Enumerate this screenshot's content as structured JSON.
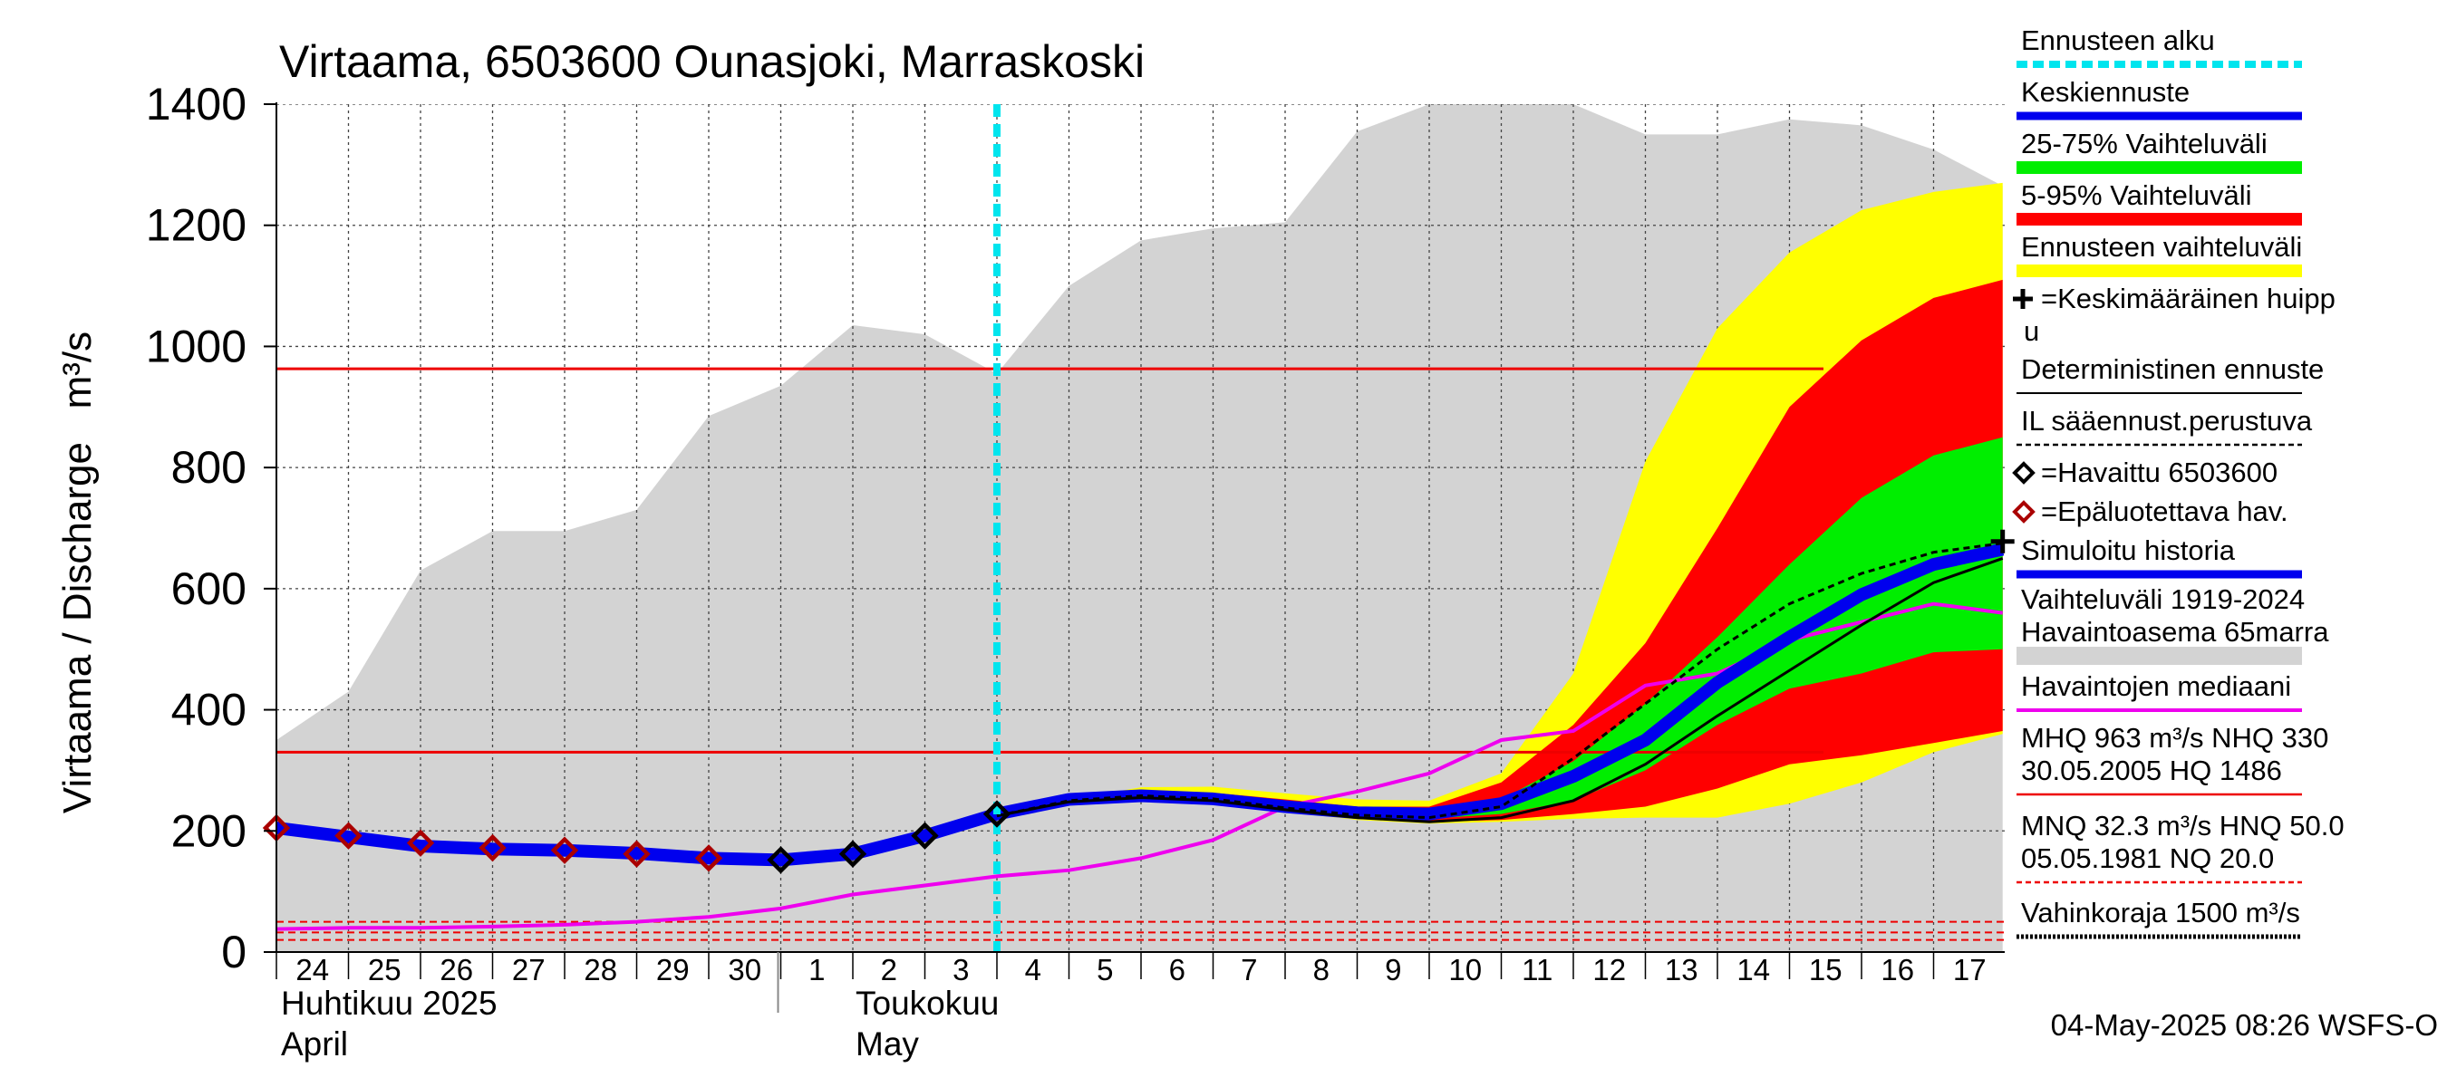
{
  "chart_data": {
    "type": "area",
    "title": "Virtaama, 6503600 Ounasjoki, Marraskoski",
    "ylabel": "Virtaama / Discharge   m³/s",
    "ylim": [
      0,
      1400
    ],
    "yticks": [
      0,
      200,
      400,
      600,
      800,
      1000,
      1200,
      1400
    ],
    "grid": true,
    "legend_position": "right",
    "x_start": "2025-04-24",
    "x_end": "2025-05-17",
    "day_labels": [
      "24",
      "25",
      "26",
      "27",
      "28",
      "29",
      "30",
      "1",
      "2",
      "3",
      "4",
      "5",
      "6",
      "7",
      "8",
      "9",
      "10",
      "11",
      "12",
      "13",
      "14",
      "15",
      "16",
      "17"
    ],
    "month_labels": [
      {
        "date": "2025-04-24",
        "fi": "Huhtikuu  2025",
        "en": "April"
      },
      {
        "date": "2025-05-02",
        "fi": "Toukokuu",
        "en": "May"
      }
    ],
    "forecast_start": "2025-05-04",
    "timestamp": "04-May-2025 08:26 WSFS-O",
    "colors": {
      "history_range": "#d3d3d3",
      "forecast_range": "#ffff00",
      "p5_95": "#ff0000",
      "p25_75": "#00ee00",
      "mean_forecast": "#0000ee",
      "median": "#ee00ee",
      "forecast_start": "#00e5ee",
      "hq_lines": "#ee0000",
      "observed": "#000000",
      "unreliable": "#aa0000"
    },
    "reference_lines": [
      {
        "name": "MHQ",
        "value": 963,
        "style": "solid"
      },
      {
        "name": "NHQ",
        "value": 330,
        "style": "solid"
      },
      {
        "name": "HNQ",
        "value": 50,
        "style": "dashed"
      },
      {
        "name": "MNQ",
        "value": 32.3,
        "style": "dashed"
      },
      {
        "name": "NQ",
        "value": 20,
        "style": "dashed"
      }
    ],
    "series": {
      "history_range": {
        "name": "Vaihteluväli 1919-2024 Havaintoasema 65marra",
        "x": [
          "2025-04-24",
          "2025-04-25",
          "2025-04-26",
          "2025-04-27",
          "2025-04-28",
          "2025-04-29",
          "2025-04-30",
          "2025-05-01",
          "2025-05-02",
          "2025-05-03",
          "2025-05-04",
          "2025-05-05",
          "2025-05-06",
          "2025-05-07",
          "2025-05-08",
          "2025-05-09",
          "2025-05-10",
          "2025-05-11",
          "2025-05-12",
          "2025-05-13",
          "2025-05-14",
          "2025-05-15",
          "2025-05-16",
          "2025-05-17",
          "2025-05-17T23:00"
        ],
        "upper": [
          350,
          430,
          630,
          695,
          695,
          730,
          885,
          935,
          1035,
          1020,
          955,
          1100,
          1175,
          1195,
          1205,
          1355,
          1400,
          1400,
          1400,
          1350,
          1350,
          1375,
          1365,
          1325,
          1265
        ],
        "lower": [
          0,
          0,
          0,
          0,
          0,
          0,
          0,
          0,
          0,
          0,
          0,
          0,
          0,
          0,
          0,
          0,
          0,
          0,
          0,
          0,
          0,
          0,
          0,
          0,
          0
        ]
      },
      "forecast_range": {
        "name": "Ennusteen vaihteluväli",
        "x": [
          "2025-05-04",
          "2025-05-05",
          "2025-05-06",
          "2025-05-07",
          "2025-05-08",
          "2025-05-09",
          "2025-05-10",
          "2025-05-11",
          "2025-05-12",
          "2025-05-13",
          "2025-05-14",
          "2025-05-15",
          "2025-05-16",
          "2025-05-17",
          "2025-05-17T23:00"
        ],
        "upper": [
          225,
          252,
          272,
          273,
          262,
          252,
          250,
          295,
          460,
          810,
          1030,
          1155,
          1225,
          1255,
          1270
        ],
        "lower": [
          225,
          248,
          252,
          248,
          232,
          218,
          212,
          215,
          220,
          222,
          222,
          245,
          280,
          330,
          360
        ]
      },
      "p5_95": {
        "name": "5-95% Vaihteluväli",
        "x": [
          "2025-05-04",
          "2025-05-05",
          "2025-05-06",
          "2025-05-07",
          "2025-05-08",
          "2025-05-09",
          "2025-05-10",
          "2025-05-11",
          "2025-05-12",
          "2025-05-13",
          "2025-05-14",
          "2025-05-15",
          "2025-05-16",
          "2025-05-17",
          "2025-05-17T23:00"
        ],
        "upper": [
          225,
          250,
          262,
          263,
          252,
          240,
          240,
          280,
          375,
          510,
          700,
          900,
          1010,
          1080,
          1110
        ],
        "lower": [
          225,
          248,
          253,
          248,
          233,
          220,
          215,
          218,
          228,
          240,
          270,
          310,
          325,
          345,
          365
        ]
      },
      "p25_75": {
        "name": "25-75% Vaihteluväli",
        "x": [
          "2025-05-04",
          "2025-05-05",
          "2025-05-06",
          "2025-05-07",
          "2025-05-08",
          "2025-05-09",
          "2025-05-10",
          "2025-05-11",
          "2025-05-12",
          "2025-05-13",
          "2025-05-14",
          "2025-05-15",
          "2025-05-16",
          "2025-05-17",
          "2025-05-17T23:00"
        ],
        "upper": [
          225,
          249,
          258,
          256,
          245,
          233,
          232,
          252,
          315,
          410,
          520,
          640,
          750,
          820,
          850
        ],
        "lower": [
          225,
          248,
          254,
          250,
          236,
          224,
          220,
          228,
          250,
          300,
          375,
          435,
          460,
          495,
          500
        ]
      },
      "mean_forecast": {
        "name": "Keskiennuste",
        "x": [
          "2025-04-24",
          "2025-04-25",
          "2025-04-26",
          "2025-04-27",
          "2025-04-28",
          "2025-04-29",
          "2025-04-30",
          "2025-05-01",
          "2025-05-02",
          "2025-05-03",
          "2025-05-04",
          "2025-05-05",
          "2025-05-06",
          "2025-05-07",
          "2025-05-08",
          "2025-05-09",
          "2025-05-10",
          "2025-05-11",
          "2025-05-12",
          "2025-05-13",
          "2025-05-14",
          "2025-05-15",
          "2025-05-16",
          "2025-05-17",
          "2025-05-17T23:00"
        ],
        "values": [
          205,
          190,
          175,
          170,
          168,
          163,
          155,
          152,
          162,
          192,
          228,
          252,
          258,
          253,
          240,
          230,
          228,
          245,
          290,
          350,
          445,
          520,
          590,
          640,
          665
        ]
      },
      "deterministic": {
        "name": "Deterministinen ennuste",
        "x": [
          "2025-05-04",
          "2025-05-05",
          "2025-05-06",
          "2025-05-07",
          "2025-05-08",
          "2025-05-09",
          "2025-05-10",
          "2025-05-11",
          "2025-05-12",
          "2025-05-13",
          "2025-05-14",
          "2025-05-15",
          "2025-05-16",
          "2025-05-17",
          "2025-05-17T23:00"
        ],
        "values": [
          225,
          248,
          255,
          250,
          235,
          222,
          215,
          222,
          250,
          310,
          390,
          465,
          540,
          610,
          650
        ]
      },
      "il_forecast": {
        "name": "IL sääennust.perustuva",
        "x": [
          "2025-05-04",
          "2025-05-05",
          "2025-05-06",
          "2025-05-07",
          "2025-05-08",
          "2025-05-09",
          "2025-05-10",
          "2025-05-11",
          "2025-05-12",
          "2025-05-13",
          "2025-05-14",
          "2025-05-15",
          "2025-05-16",
          "2025-05-17",
          "2025-05-17T23:00"
        ],
        "values": [
          225,
          250,
          258,
          253,
          238,
          226,
          222,
          240,
          320,
          410,
          500,
          575,
          625,
          660,
          675
        ]
      },
      "median": {
        "name": "Havaintojen mediaani",
        "x": [
          "2025-04-24",
          "2025-04-25",
          "2025-04-26",
          "2025-04-27",
          "2025-04-28",
          "2025-04-29",
          "2025-04-30",
          "2025-05-01",
          "2025-05-02",
          "2025-05-03",
          "2025-05-04",
          "2025-05-05",
          "2025-05-06",
          "2025-05-07",
          "2025-05-08",
          "2025-05-09",
          "2025-05-10",
          "2025-05-11",
          "2025-05-12",
          "2025-05-13",
          "2025-05-14",
          "2025-05-15",
          "2025-05-16",
          "2025-05-17",
          "2025-05-17T23:00"
        ],
        "values": [
          38,
          40,
          40,
          42,
          45,
          50,
          58,
          72,
          95,
          110,
          125,
          135,
          155,
          185,
          240,
          265,
          295,
          350,
          365,
          440,
          460,
          515,
          545,
          575,
          560
        ]
      },
      "observed": {
        "name": "=Havaittu 6503600",
        "x": [
          "2025-05-01",
          "2025-05-02",
          "2025-05-03",
          "2025-05-04"
        ],
        "values": [
          152,
          162,
          192,
          228
        ]
      },
      "unreliable": {
        "name": "=Epäluotettava hav.",
        "x": [
          "2025-04-24",
          "2025-04-25",
          "2025-04-26",
          "2025-04-27",
          "2025-04-28",
          "2025-04-29",
          "2025-04-30"
        ],
        "values": [
          205,
          192,
          180,
          172,
          168,
          162,
          155
        ]
      },
      "mean_peak": {
        "name": "=Keskimääräinen huippu",
        "x": "2025-05-17T23:00",
        "value": 678
      }
    },
    "legend": [
      {
        "label": "Ennusteen alku",
        "style": "cyan-dashed"
      },
      {
        "label": "Keskiennuste",
        "style": "blue"
      },
      {
        "label": "25-75% Vaihteluväli",
        "style": "green"
      },
      {
        "label": "5-95% Vaihteluväli",
        "style": "red"
      },
      {
        "label": "Ennusteen vaihteluväli",
        "style": "yellow"
      },
      {
        "label": "=Keskimääräinen huipp",
        "label2": "u",
        "style": "plus"
      },
      {
        "label": "Deterministinen ennuste",
        "style": "black-thin"
      },
      {
        "label": "IL sääennust.perustuva",
        "style": "black-dashed"
      },
      {
        "label": "=Havaittu 6503600",
        "style": "diamond-black"
      },
      {
        "label": "=Epäluotettava hav.",
        "style": "diamond-red"
      },
      {
        "label": "Simuloitu historia",
        "style": "blue"
      },
      {
        "label": "Vaihteluväli 1919-2024",
        "label2": " Havaintoasema 65marra",
        "style": "grey-band"
      },
      {
        "label": "Havaintojen mediaani",
        "style": "magenta"
      },
      {
        "label": "MHQ  963 m³/s NHQ  330",
        "label2": "30.05.2005 HQ 1486",
        "style": "red-thin"
      },
      {
        "label": "MNQ 32.3 m³/s HNQ 50.0",
        "label2": "05.05.1981 NQ 20.0",
        "style": "red-dashed"
      },
      {
        "label": "Vahinkoraja 1500 m³/s",
        "style": "black-dotted"
      }
    ]
  }
}
